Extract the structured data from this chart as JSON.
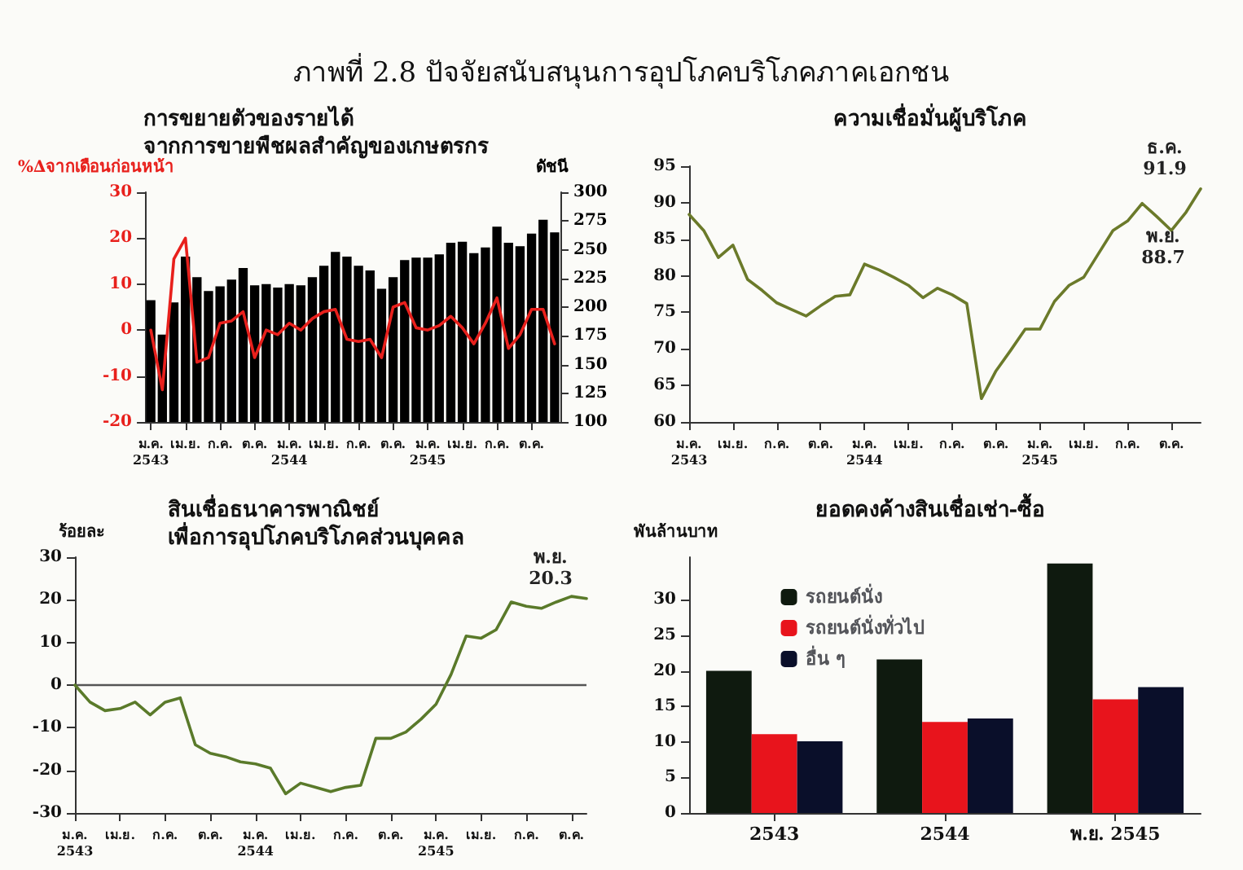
{
  "chart_data": [
    {
      "type": "bar",
      "title": "การขยายตัวของรายได้\nจากการขายพืชผลสำคัญของเกษตรกร",
      "annotations": [
        "ภาพที่ 2.8  ปัจจัยสนับสนุนการอุปโภคบริโภคภาคเอกชน"
      ],
      "ylabel": "%∆จากเดือนก่อนหน้า",
      "y2label": "ดัชนี",
      "categories": [
        "ม.ค.\n2543",
        null,
        null,
        "เม.ย.",
        null,
        null,
        "ก.ค.",
        null,
        null,
        "ต.ค.",
        null,
        null,
        "ม.ค.\n2544",
        null,
        null,
        "เม.ย.",
        null,
        null,
        "ก.ค.",
        null,
        null,
        "ต.ค.",
        null,
        null,
        "ม.ค.\n2545",
        null,
        null,
        "เม.ย.",
        null,
        null,
        "ก.ค.",
        null,
        null,
        "ต.ค.",
        null,
        null
      ],
      "series": [
        {
          "type": "bar",
          "axis": "y2",
          "color": "#000000",
          "values": [
            206,
            176,
            204,
            244,
            226,
            214,
            218,
            224,
            234,
            219,
            220,
            217,
            220,
            219,
            226,
            236,
            248,
            244,
            236,
            232,
            216,
            226,
            241,
            243,
            243,
            246,
            256,
            257,
            247,
            252,
            270,
            256,
            253,
            264,
            276,
            265
          ]
        },
        {
          "type": "line",
          "color": "#e8201c",
          "values": [
            0,
            -13,
            15.5,
            20,
            -7,
            -6,
            1.5,
            2,
            4,
            -6,
            0,
            -1,
            1.5,
            0,
            2.5,
            4,
            4.5,
            -2,
            -2.5,
            -2,
            -6,
            5,
            6,
            0.5,
            0,
            1,
            3,
            0.5,
            -3,
            1.5,
            7,
            -4,
            -1,
            4.5,
            4.5,
            -3
          ]
        }
      ],
      "ylim": [
        -20,
        30
      ],
      "yticks": [
        -20,
        -10,
        0,
        10,
        20,
        30
      ],
      "y2lim": [
        100,
        300
      ],
      "y2ticks": [
        100,
        125,
        150,
        175,
        200,
        225,
        250,
        275,
        300
      ],
      "grid": false,
      "legend": false
    },
    {
      "type": "line",
      "title": "ความเชื่อมั่นผู้บริโภค",
      "categories": [
        "ม.ค.\n2543",
        null,
        null,
        "เม.ย.",
        null,
        null,
        "ก.ค.",
        null,
        null,
        "ต.ค.",
        null,
        null,
        "ม.ค.\n2544",
        null,
        null,
        "เม.ย.",
        null,
        null,
        "ก.ค.",
        null,
        null,
        "ต.ค.",
        null,
        null,
        "ม.ค.\n2545",
        null,
        null,
        "เม.ย.",
        null,
        null,
        "ก.ค.",
        null,
        null,
        "ต.ค.",
        null,
        null
      ],
      "series": [
        {
          "color": "#6b7a2a",
          "values": [
            88.4,
            86.2,
            82.5,
            84.2,
            79.5,
            78,
            76.3,
            75.4,
            74.5,
            75.9,
            77.2,
            77.4,
            81.6,
            80.8,
            79.8,
            78.7,
            77,
            78.3,
            77.4,
            76.2,
            63.2,
            67,
            69.8,
            72.7,
            72.7,
            76.5,
            78.7,
            79.8,
            83,
            86.2,
            87.5,
            89.9,
            88.1,
            86.2,
            88.7,
            91.9
          ],
          "value_labels": [
            null,
            null,
            null,
            null,
            null,
            null,
            null,
            null,
            null,
            null,
            null,
            null,
            null,
            null,
            null,
            null,
            null,
            null,
            null,
            null,
            null,
            null,
            null,
            null,
            null,
            null,
            null,
            null,
            null,
            null,
            null,
            null,
            null,
            null,
            "พ.ย.\n88.7",
            "ธ.ค.\n91.9"
          ]
        }
      ],
      "ylim": [
        60,
        95
      ],
      "yticks": [
        60,
        65,
        70,
        75,
        80,
        85,
        90,
        95
      ],
      "grid": false,
      "legend": false
    },
    {
      "type": "line",
      "title": "สินเชื่อธนาคารพาณิชย์\nเพื่อการอุปโภคบริโภคส่วนบุคคล",
      "ylabel": "ร้อยละ",
      "categories": [
        "ม.ค.\n2543",
        null,
        null,
        "เม.ย.",
        null,
        null,
        "ก.ค.",
        null,
        null,
        "ต.ค.",
        null,
        null,
        "ม.ค.\n2544",
        null,
        null,
        "เม.ย.",
        null,
        null,
        "ก.ค.",
        null,
        null,
        "ต.ค.",
        null,
        null,
        "ม.ค.\n2545",
        null,
        null,
        "เม.ย.",
        null,
        null,
        "ก.ค.",
        null,
        null,
        "ต.ค.",
        null
      ],
      "series": [
        {
          "color": "#5a7a2a",
          "values": [
            0,
            -4,
            -6,
            -5.5,
            -4,
            -7,
            -4,
            -3,
            -14,
            -16,
            -16.8,
            -18,
            -18.5,
            -19.5,
            -25.5,
            -23,
            -24,
            -25,
            -24,
            -23.5,
            -12.5,
            -12.5,
            -11,
            -8,
            -4.5,
            2.5,
            11.5,
            11,
            13,
            19.5,
            18.5,
            18,
            19.5,
            20.8,
            20.3
          ],
          "value_labels": [
            null,
            null,
            null,
            null,
            null,
            null,
            null,
            null,
            null,
            null,
            null,
            null,
            null,
            null,
            null,
            null,
            null,
            null,
            null,
            null,
            null,
            null,
            null,
            null,
            null,
            null,
            null,
            null,
            null,
            null,
            null,
            null,
            null,
            null,
            "พ.ย.\n20.3"
          ]
        }
      ],
      "ylim": [
        -30,
        30
      ],
      "yticks": [
        -30,
        -20,
        -10,
        0,
        10,
        20,
        30
      ],
      "ref_lines": [
        {
          "axis": "y",
          "value": 0,
          "color": "#555555"
        }
      ],
      "grid": false,
      "legend": false
    },
    {
      "type": "bar",
      "title": "ยอดคงค้างสินเชื่อเช่า-ซื้อ",
      "ylabel": "พันล้านบาท",
      "categories": [
        "2543",
        "2544",
        "พ.ย. 2545"
      ],
      "series": [
        {
          "name": "รถยนต์นั่ง",
          "color": "#0f1a0f",
          "values": [
            20.0,
            21.6,
            35.1
          ]
        },
        {
          "name": "รถยนต์นั่งทั่วไป",
          "color": "#e8141c",
          "values": [
            11.1,
            12.8,
            16.0
          ]
        },
        {
          "name": "อื่น ๆ",
          "color": "#0a0f2a",
          "values": [
            10.1,
            13.3,
            17.7
          ]
        }
      ],
      "ylim": [
        0,
        36
      ],
      "yticks": [
        0,
        5,
        10,
        15,
        20,
        25,
        30
      ],
      "grid": false,
      "legend": "top"
    }
  ]
}
